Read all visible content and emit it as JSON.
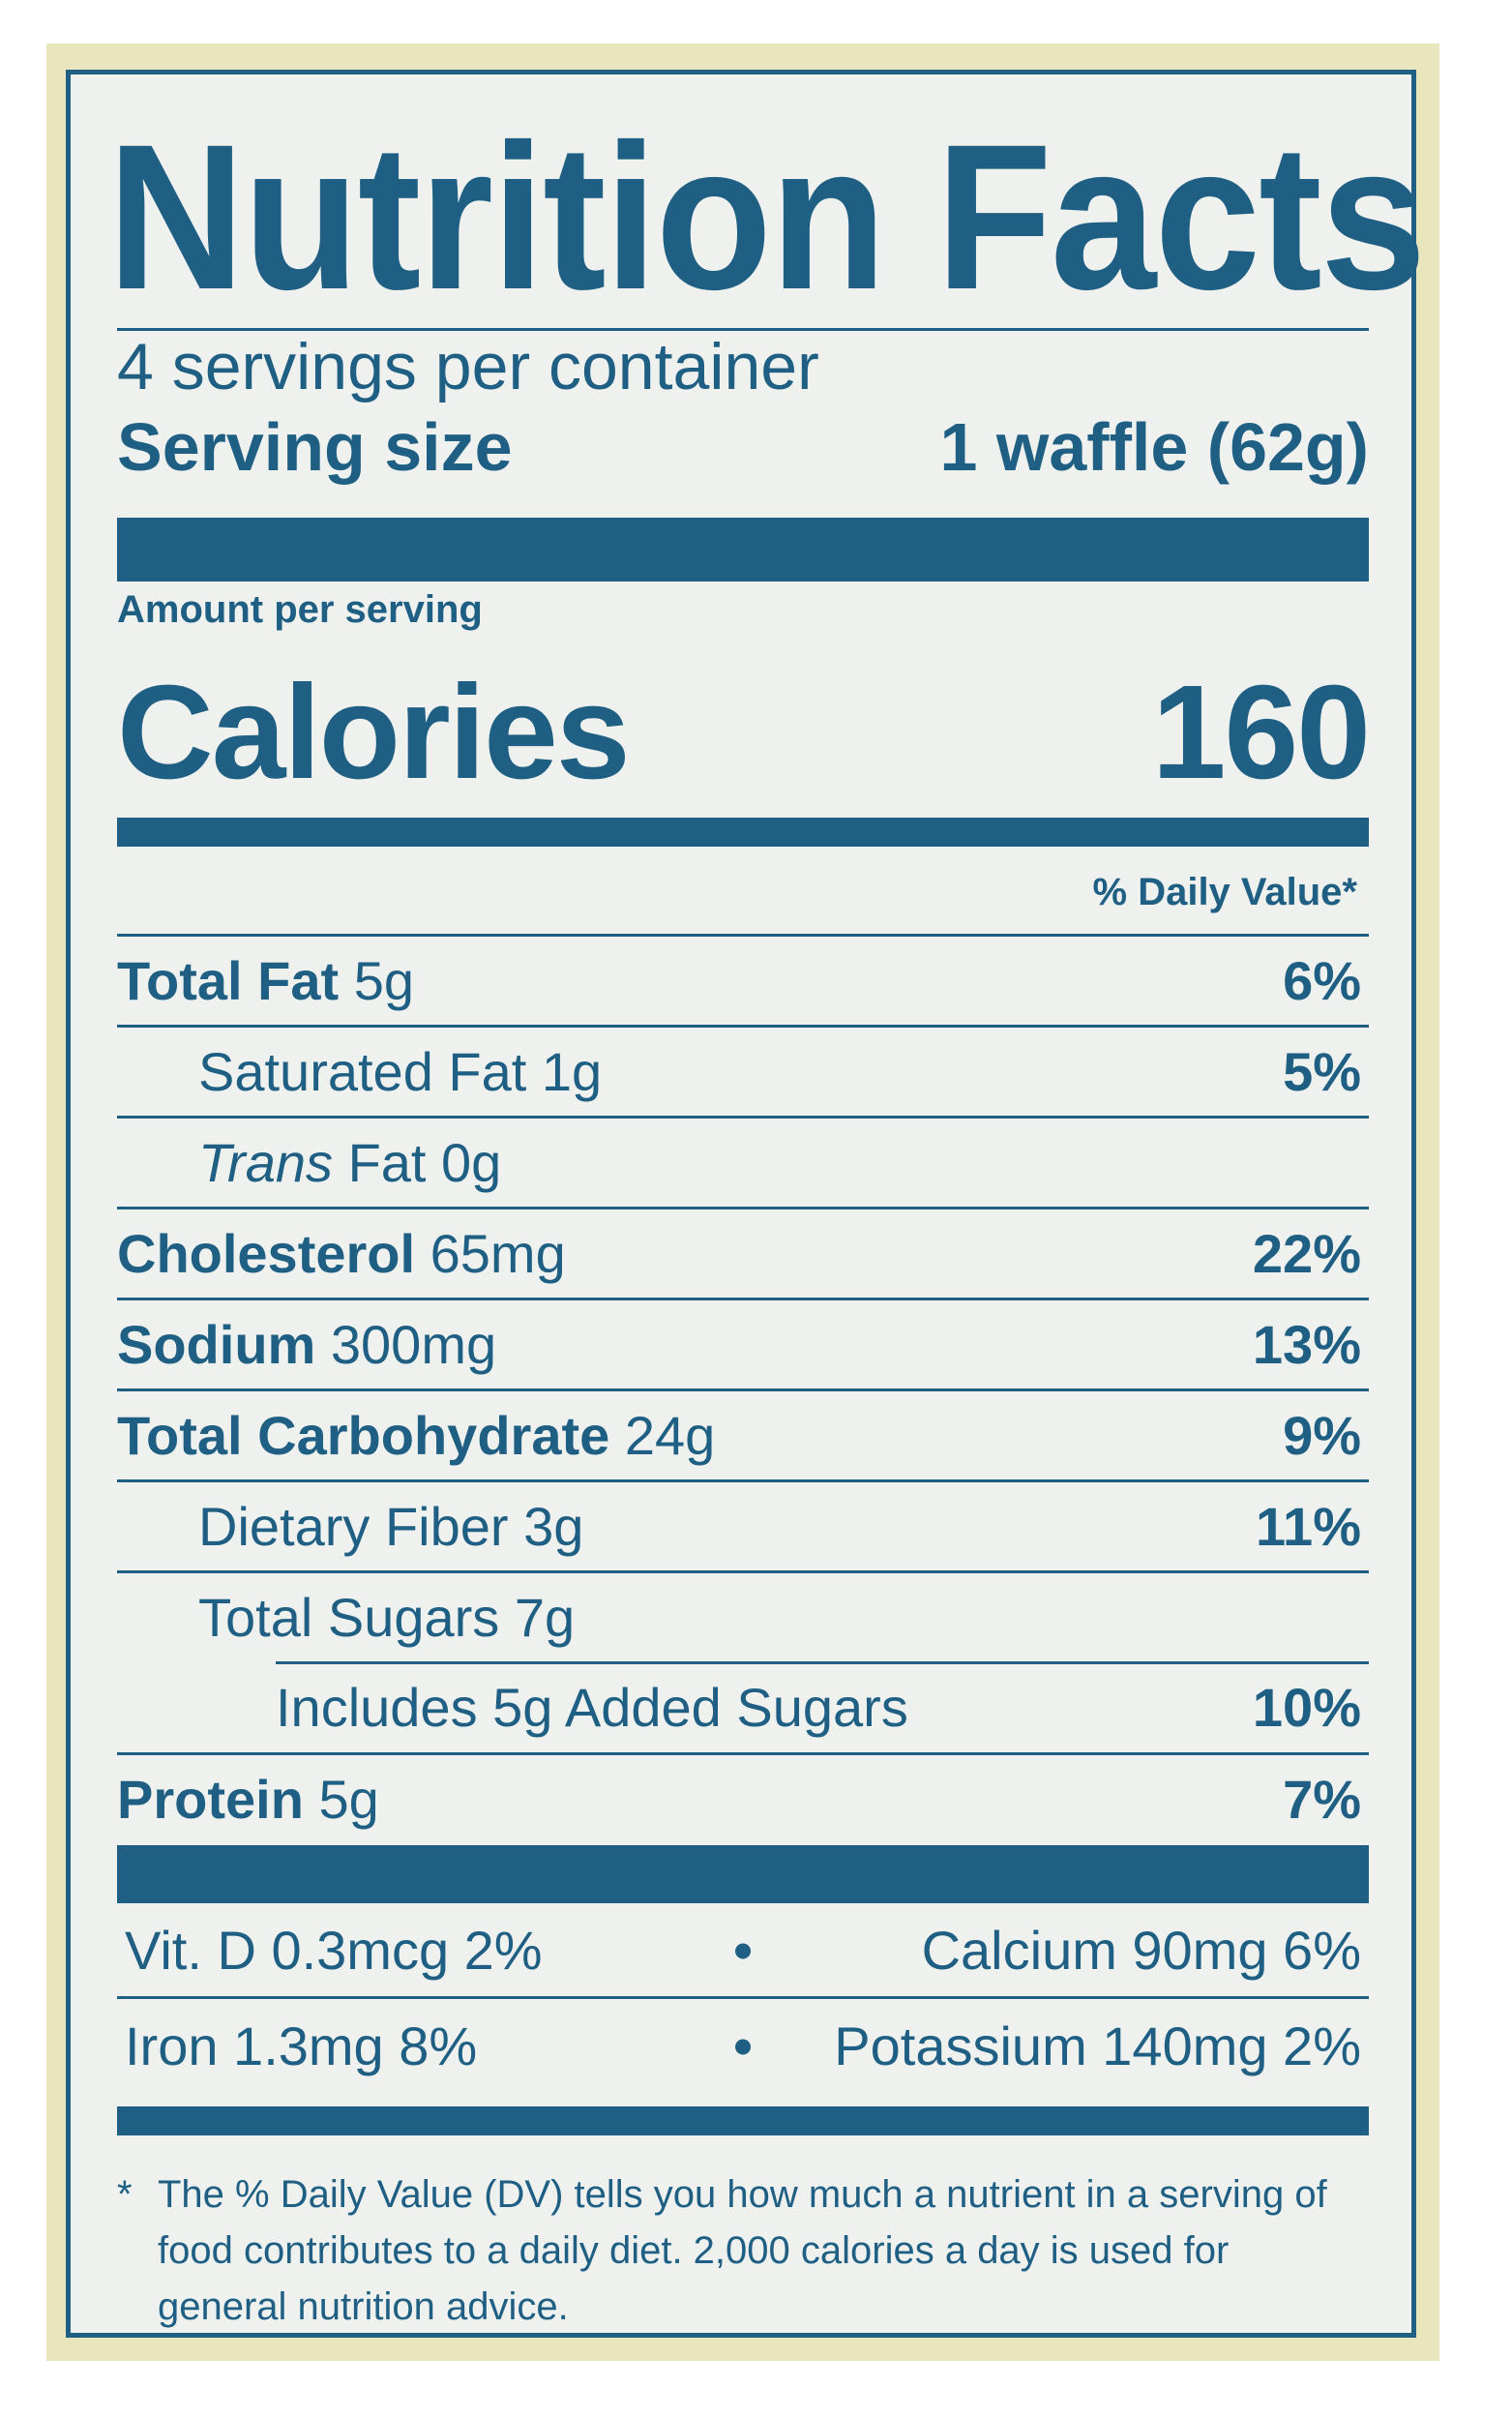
{
  "title": "Nutrition Facts",
  "servings_per_container": "4 servings per container",
  "serving_size": {
    "label": "Serving size",
    "value": "1 waffle (62g)"
  },
  "amount_per_serving": "Amount per serving",
  "calories": {
    "label": "Calories",
    "value": "160"
  },
  "daily_value_header": "% Daily Value*",
  "nutrients": [
    {
      "name": "Total Fat",
      "amount": "5g",
      "dv": "6%"
    },
    {
      "name": "Saturated Fat 1g",
      "dv": "5%"
    },
    {
      "name_italic": "Trans",
      "name": "Fat 0g",
      "dv": ""
    },
    {
      "name": "Cholesterol",
      "amount": "65mg",
      "dv": "22%"
    },
    {
      "name": "Sodium",
      "amount": "300mg",
      "dv": "13%"
    },
    {
      "name": "Total Carbohydrate",
      "amount": "24g",
      "dv": "9%"
    },
    {
      "name": "Dietary Fiber 3g",
      "dv": "11%"
    },
    {
      "name": "Total Sugars 7g",
      "dv": ""
    },
    {
      "name": "Includes 5g Added Sugars",
      "dv": "10%"
    },
    {
      "name": "Protein",
      "amount": "5g",
      "dv": "7%"
    }
  ],
  "vitamins": [
    {
      "left": "Vit. D 0.3mcg 2%",
      "separator": "•",
      "right": "Calcium 90mg 6%"
    },
    {
      "left": "Iron 1.3mg 8%",
      "separator": "•",
      "right": "Potassium 140mg 2%"
    }
  ],
  "footnote": {
    "marker": "*",
    "text": "The % Daily Value (DV) tells you how much a nutrient in a serving of food contributes to a daily diet. 2,000 calories a day is used for general nutrition advice."
  },
  "colors": {
    "ink": "#1f5f83",
    "label_bg": "#eef1ee",
    "frame": "#e9e6bd"
  }
}
